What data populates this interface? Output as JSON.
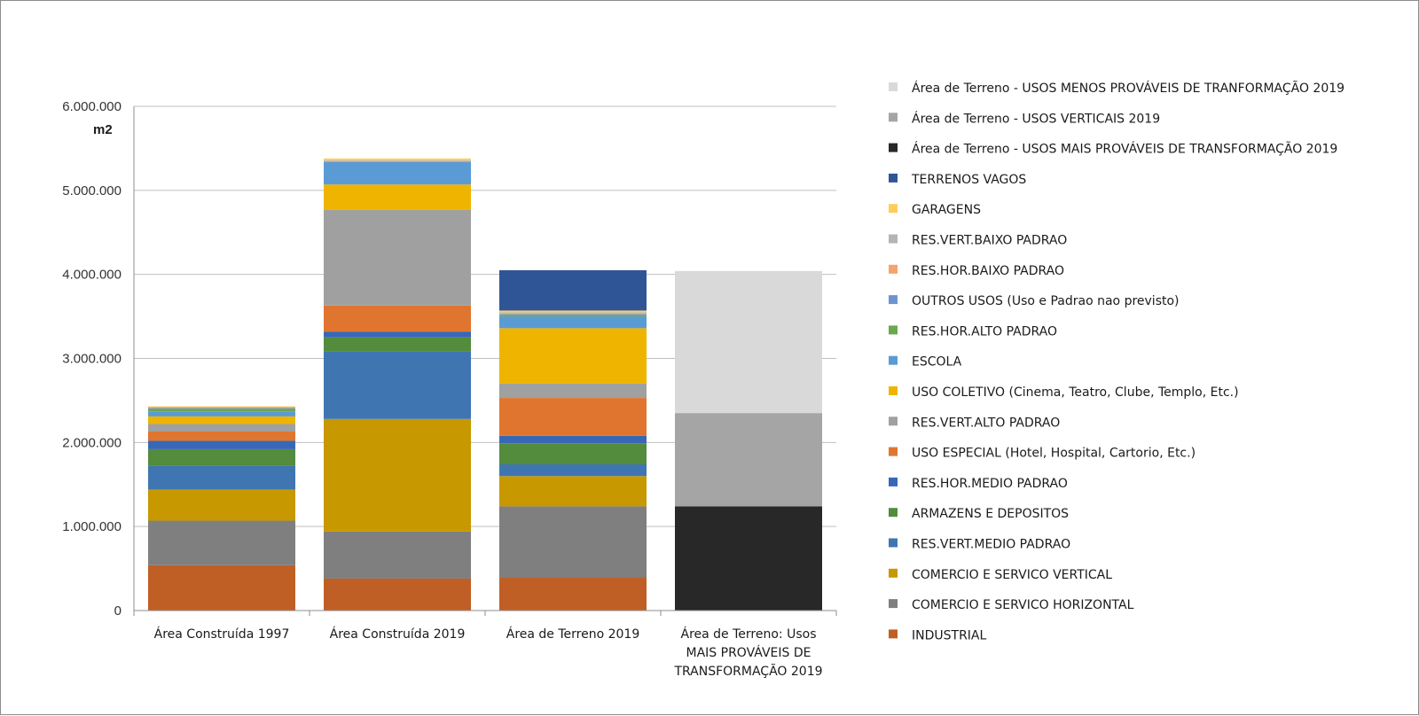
{
  "chart_data": {
    "type": "bar",
    "stacked": true,
    "ylabel": "m2",
    "ylim": [
      0,
      6000000
    ],
    "yticks": [
      0,
      1000000,
      2000000,
      3000000,
      4000000,
      5000000,
      6000000
    ],
    "ytick_labels": [
      "0",
      "1.000.000",
      "2.000.000",
      "3.000.000",
      "4.000.000",
      "5.000.000",
      "6.000.000"
    ],
    "grid": true,
    "legend_position": "right",
    "categories": [
      "Área Construída 1997",
      "Área Construída 2019",
      "Área de Terreno 2019",
      "Área de Terreno: Usos MAIS PROVÁVEIS DE TRANSFORMAÇÃO 2019"
    ],
    "series": [
      {
        "name": "INDUSTRIAL",
        "color": "#bf5f26",
        "values": [
          540000,
          380000,
          390000,
          0
        ]
      },
      {
        "name": "COMERCIO E SERVICO HORIZONTAL",
        "color": "#7f7f7f",
        "values": [
          530000,
          560000,
          850000,
          0
        ]
      },
      {
        "name": "COMERCIO E SERVICO VERTICAL",
        "color": "#c79800",
        "values": [
          370000,
          1340000,
          360000,
          0
        ]
      },
      {
        "name": "RES.VERT.MEDIO PADRAO",
        "color": "#3f76b1",
        "values": [
          280000,
          800000,
          140000,
          0
        ]
      },
      {
        "name": "ARMAZENS E DEPOSITOS",
        "color": "#528c3c",
        "values": [
          200000,
          170000,
          250000,
          0
        ]
      },
      {
        "name": "RES.HOR.MEDIO PADRAO",
        "color": "#3868b5",
        "values": [
          100000,
          70000,
          90000,
          0
        ]
      },
      {
        "name": "USO ESPECIAL (Hotel, Hospital, Cartorio, Etc.)",
        "color": "#e0752f",
        "values": [
          110000,
          310000,
          450000,
          0
        ]
      },
      {
        "name": "RES.VERT.ALTO PADRAO",
        "color": "#a0a0a0",
        "values": [
          90000,
          1140000,
          170000,
          0
        ]
      },
      {
        "name": "USO COLETIVO (Cinema, Teatro, Clube, Templo, Etc.)",
        "color": "#efb400",
        "values": [
          90000,
          300000,
          660000,
          0
        ]
      },
      {
        "name": "ESCOLA",
        "color": "#5b9bd5",
        "values": [
          60000,
          270000,
          140000,
          0
        ]
      },
      {
        "name": "RES.HOR.ALTO PADRAO",
        "color": "#6aa84f",
        "values": [
          30000,
          0,
          20000,
          0
        ]
      },
      {
        "name": "OUTROS USOS (Uso e Padrao nao previsto)",
        "color": "#6d94d0",
        "values": [
          10000,
          0,
          10000,
          0
        ]
      },
      {
        "name": "RES.HOR.BAIXO PADRAO",
        "color": "#f4a26e",
        "values": [
          10000,
          10000,
          10000,
          0
        ]
      },
      {
        "name": "RES.VERT.BAIXO PADRAO",
        "color": "#b4b4b4",
        "values": [
          0,
          10000,
          10000,
          0
        ]
      },
      {
        "name": "GARAGENS",
        "color": "#ffcd5c",
        "values": [
          10000,
          20000,
          20000,
          0
        ]
      },
      {
        "name": "TERRENOS VAGOS",
        "color": "#2f5597",
        "values": [
          0,
          0,
          480000,
          0
        ]
      },
      {
        "name": "Área de Terreno - USOS MAIS PROVÁVEIS  DE TRANSFORMAÇÃO 2019",
        "color": "#282828",
        "values": [
          0,
          0,
          0,
          1240000
        ]
      },
      {
        "name": "Área de Terreno - USOS VERTICAIS 2019",
        "color": "#a5a5a5",
        "values": [
          0,
          0,
          0,
          1110000
        ]
      },
      {
        "name": "Área de Terreno - USOS MENOS PROVÁVEIS DE TRANFORMAÇÃO 2019",
        "color": "#d9d9d9",
        "values": [
          0,
          0,
          0,
          1690000
        ]
      }
    ]
  }
}
